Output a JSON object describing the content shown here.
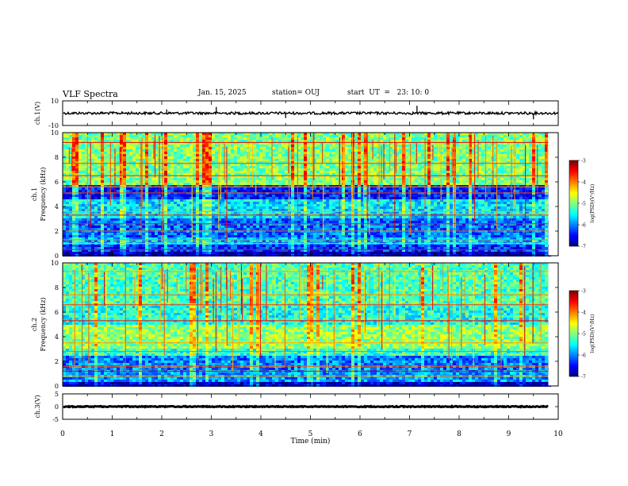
{
  "header": {
    "title": "VLF Spectra",
    "date": "Jan. 15, 2025",
    "station": "station= OUJ",
    "start": "start  UT  =   23: 10: 0"
  },
  "chart_data": [
    {
      "type": "line",
      "name": "ch1-waveform",
      "ylabel": "ch.1(V)",
      "ylim": [
        -10,
        10
      ],
      "yticks": [
        "10",
        "-10"
      ],
      "xlim": [
        0,
        10
      ],
      "baseline": 0,
      "color": "#000000",
      "spikes": [
        {
          "x": 2.1,
          "y": 3
        },
        {
          "x": 3.1,
          "y": 5
        },
        {
          "x": 4.5,
          "y": -4
        },
        {
          "x": 7.15,
          "y": 6
        },
        {
          "x": 9.5,
          "y": -5
        }
      ]
    },
    {
      "type": "heatmap",
      "name": "ch1-spectrogram",
      "ylabel": "ch.1\nFrequency (kHz)",
      "ylim": [
        0,
        10
      ],
      "yticks": [
        "0",
        "2",
        "4",
        "6",
        "8",
        "10"
      ],
      "xlim": [
        0,
        9.8
      ],
      "colorbar": {
        "label": "log(PSD)(V²/Hz)",
        "range": [
          -7,
          -3
        ],
        "ticks": [
          "-3",
          "-4",
          "-5",
          "-6",
          "-7"
        ]
      },
      "bands": [
        {
          "f": [
            0,
            0.3
          ],
          "level": -6.8
        },
        {
          "f": [
            0.3,
            1.0
          ],
          "level": -6.3
        },
        {
          "f": [
            1.0,
            1.5
          ],
          "level": -5.8
        },
        {
          "f": [
            1.5,
            3.0
          ],
          "level": -6.1
        },
        {
          "f": [
            3.0,
            4.6
          ],
          "level": -5.6
        },
        {
          "f": [
            4.6,
            5.8
          ],
          "level": -6.4
        },
        {
          "f": [
            5.8,
            10
          ],
          "level": -5.0
        }
      ],
      "lines_khz": [
        0.5,
        1.0,
        1.3,
        2.0,
        2.6,
        3.3,
        3.6,
        5.1,
        5.6,
        6.5,
        7.5,
        9.2
      ]
    },
    {
      "type": "heatmap",
      "name": "ch2-spectrogram",
      "ylabel": "ch.2\nFrequency (kHz)",
      "ylim": [
        0,
        10
      ],
      "yticks": [
        "0",
        "2",
        "4",
        "6",
        "8",
        "10"
      ],
      "xlim": [
        0,
        9.8
      ],
      "colorbar": {
        "label": "log(PSD)(V²/Hz)",
        "range": [
          -7,
          -3
        ],
        "ticks": [
          "-3",
          "-4",
          "-5",
          "-6",
          "-7"
        ]
      },
      "bands": [
        {
          "f": [
            0,
            0.4
          ],
          "level": -6.7
        },
        {
          "f": [
            0.4,
            1.2
          ],
          "level": -5.9
        },
        {
          "f": [
            1.2,
            2.4
          ],
          "level": -6.0
        },
        {
          "f": [
            2.4,
            3.0
          ],
          "level": -5.3
        },
        {
          "f": [
            3.0,
            5.0
          ],
          "level": -4.9
        },
        {
          "f": [
            5.0,
            6.5
          ],
          "level": -5.4
        },
        {
          "f": [
            6.5,
            10
          ],
          "level": -5.2
        }
      ],
      "lines_khz": [
        0.8,
        1.2,
        1.6,
        2.8,
        3.5,
        5.3,
        6.6,
        7.4,
        9.3
      ]
    },
    {
      "type": "line",
      "name": "ch3-waveform",
      "ylabel": "ch.3(V)",
      "ylim": [
        -5,
        5
      ],
      "yticks": [
        "5",
        "0",
        "-5"
      ],
      "xlim": [
        0,
        9.8
      ],
      "baseline": 0,
      "color": "#000000"
    }
  ],
  "xaxis": {
    "label": "Time (min)",
    "ticks": [
      "0",
      "1",
      "2",
      "3",
      "4",
      "5",
      "6",
      "7",
      "8",
      "9",
      "10"
    ],
    "range": [
      0,
      10
    ]
  }
}
